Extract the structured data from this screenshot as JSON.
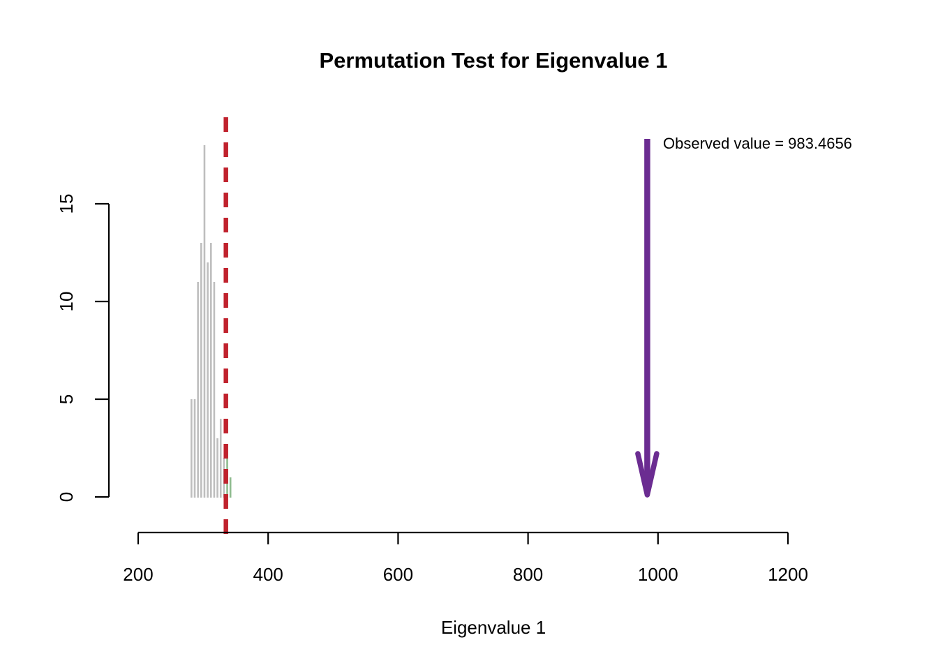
{
  "title": "Permutation Test for Eigenvalue 1",
  "colors": {
    "spike_gray": "#bebebe",
    "tail_green": "#8fbc8f",
    "critical_red": "#c0222d",
    "observed_purple": "#6b2c91",
    "axis_black": "#000000",
    "background": "#ffffff"
  },
  "chart_data": {
    "type": "bar",
    "subtype": "permutation-null-distribution-spike-histogram",
    "title": "Permutation Test for Eigenvalue 1",
    "xlabel": "Eigenvalue 1",
    "ylabel": "",
    "xlim": [
      200,
      1200
    ],
    "ylim": [
      0,
      18
    ],
    "x_ticks": [
      200,
      400,
      600,
      800,
      1000,
      1200
    ],
    "y_ticks": [
      0,
      5,
      10,
      15
    ],
    "grid": false,
    "legend": false,
    "bins": {
      "centers": [
        282,
        287,
        292,
        297,
        302,
        307,
        312,
        317,
        322,
        327,
        332,
        337,
        342
      ],
      "counts": [
        5,
        5,
        11,
        13,
        18,
        12,
        13,
        11,
        3,
        4,
        2,
        2,
        1
      ],
      "colors": [
        "gray",
        "gray",
        "gray",
        "gray",
        "gray",
        "gray",
        "gray",
        "gray",
        "gray",
        "gray",
        "gray",
        "green",
        "green"
      ],
      "total_permutations": 100
    },
    "critical_line": {
      "value": 335,
      "style": "dashed",
      "color": "#c0222d"
    },
    "observed": {
      "value": 983.4656,
      "label": "Observed value = 983.4656",
      "arrow_color": "#6b2c91"
    }
  }
}
